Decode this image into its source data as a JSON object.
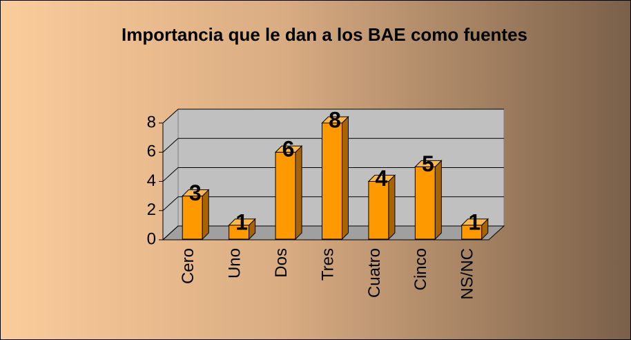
{
  "chart_data": {
    "type": "bar",
    "title": "Importancia que le dan a los BAE como fuentes",
    "categories": [
      "Cero",
      "Uno",
      "Dos",
      "Tres",
      "Cuatro",
      "Cinco",
      "NS/NC"
    ],
    "values": [
      3,
      1,
      6,
      8,
      4,
      5,
      1
    ],
    "color": "#ff9900",
    "ylim": [
      0,
      8
    ],
    "yticks": [
      0,
      2,
      4,
      6,
      8
    ],
    "grid": true
  }
}
